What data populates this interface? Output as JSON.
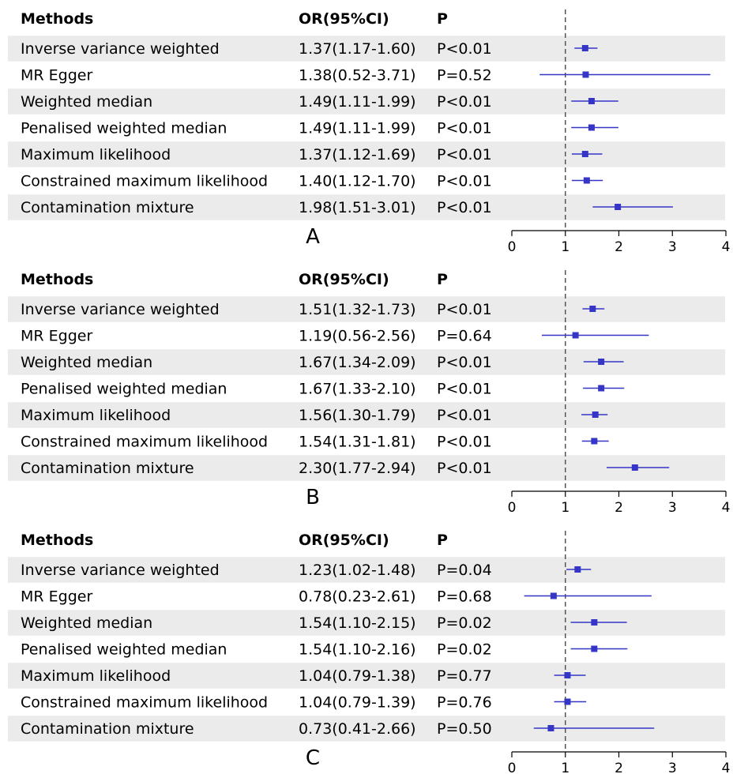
{
  "header": {
    "methods": "Methods",
    "or": "OR(95%CI)",
    "p": "P"
  },
  "chart_data": [
    {
      "type": "forest",
      "panel_label": "A",
      "reference_line": 1,
      "xlim": [
        0,
        4
      ],
      "ticks": [
        "0",
        "1",
        "2",
        "3",
        "4"
      ],
      "rows": [
        {
          "method": "Inverse variance weighted",
          "or_text": "1.37(1.17-1.60)",
          "p_text": "P<0.01",
          "or": 1.37,
          "lo": 1.17,
          "hi": 1.6
        },
        {
          "method": "MR Egger",
          "or_text": "1.38(0.52-3.71)",
          "p_text": "P=0.52",
          "or": 1.38,
          "lo": 0.52,
          "hi": 3.71
        },
        {
          "method": "Weighted median",
          "or_text": "1.49(1.11-1.99)",
          "p_text": "P<0.01",
          "or": 1.49,
          "lo": 1.11,
          "hi": 1.99
        },
        {
          "method": "Penalised weighted median",
          "or_text": "1.49(1.11-1.99)",
          "p_text": "P<0.01",
          "or": 1.49,
          "lo": 1.11,
          "hi": 1.99
        },
        {
          "method": "Maximum likelihood",
          "or_text": "1.37(1.12-1.69)",
          "p_text": "P<0.01",
          "or": 1.37,
          "lo": 1.12,
          "hi": 1.69
        },
        {
          "method": "Constrained maximum likelihood",
          "or_text": "1.40(1.12-1.70)",
          "p_text": "P<0.01",
          "or": 1.4,
          "lo": 1.12,
          "hi": 1.7
        },
        {
          "method": "Contamination mixture",
          "or_text": "1.98(1.51-3.01)",
          "p_text": "P<0.01",
          "or": 1.98,
          "lo": 1.51,
          "hi": 3.01
        }
      ]
    },
    {
      "type": "forest",
      "panel_label": "B",
      "reference_line": 1,
      "xlim": [
        0,
        4
      ],
      "ticks": [
        "0",
        "1",
        "2",
        "3",
        "4"
      ],
      "rows": [
        {
          "method": "Inverse variance weighted",
          "or_text": "1.51(1.32-1.73)",
          "p_text": "P<0.01",
          "or": 1.51,
          "lo": 1.32,
          "hi": 1.73
        },
        {
          "method": "MR Egger",
          "or_text": "1.19(0.56-2.56)",
          "p_text": "P=0.64",
          "or": 1.19,
          "lo": 0.56,
          "hi": 2.56
        },
        {
          "method": "Weighted median",
          "or_text": "1.67(1.34-2.09)",
          "p_text": "P<0.01",
          "or": 1.67,
          "lo": 1.34,
          "hi": 2.09
        },
        {
          "method": "Penalised weighted median",
          "or_text": "1.67(1.33-2.10)",
          "p_text": "P<0.01",
          "or": 1.67,
          "lo": 1.33,
          "hi": 2.1
        },
        {
          "method": "Maximum likelihood",
          "or_text": "1.56(1.30-1.79)",
          "p_text": "P<0.01",
          "or": 1.56,
          "lo": 1.3,
          "hi": 1.79
        },
        {
          "method": "Constrained maximum likelihood",
          "or_text": "1.54(1.31-1.81)",
          "p_text": "P<0.01",
          "or": 1.54,
          "lo": 1.31,
          "hi": 1.81
        },
        {
          "method": "Contamination mixture",
          "or_text": "2.30(1.77-2.94)",
          "p_text": "P<0.01",
          "or": 2.3,
          "lo": 1.77,
          "hi": 2.94
        }
      ]
    },
    {
      "type": "forest",
      "panel_label": "C",
      "reference_line": 1,
      "xlim": [
        0,
        4
      ],
      "ticks": [
        "0",
        "1",
        "2",
        "3",
        "4"
      ],
      "rows": [
        {
          "method": "Inverse variance weighted",
          "or_text": "1.23(1.02-1.48)",
          "p_text": "P=0.04",
          "or": 1.23,
          "lo": 1.02,
          "hi": 1.48
        },
        {
          "method": "MR Egger",
          "or_text": "0.78(0.23-2.61)",
          "p_text": "P=0.68",
          "or": 0.78,
          "lo": 0.23,
          "hi": 2.61
        },
        {
          "method": "Weighted median",
          "or_text": "1.54(1.10-2.15)",
          "p_text": "P=0.02",
          "or": 1.54,
          "lo": 1.1,
          "hi": 2.15
        },
        {
          "method": "Penalised weighted median",
          "or_text": "1.54(1.10-2.16)",
          "p_text": "P=0.02",
          "or": 1.54,
          "lo": 1.1,
          "hi": 2.16
        },
        {
          "method": "Maximum likelihood",
          "or_text": "1.04(0.79-1.38)",
          "p_text": "P=0.77",
          "or": 1.04,
          "lo": 0.79,
          "hi": 1.38
        },
        {
          "method": "Constrained maximum likelihood",
          "or_text": "1.04(0.79-1.39)",
          "p_text": "P=0.76",
          "or": 1.04,
          "lo": 0.79,
          "hi": 1.39
        },
        {
          "method": "Contamination mixture",
          "or_text": "0.73(0.41-2.66)",
          "p_text": "P=0.50",
          "or": 0.73,
          "lo": 0.41,
          "hi": 2.66
        }
      ]
    }
  ],
  "colors": {
    "estimate": "#3535c8",
    "row_band": "#ebebeb",
    "reference_line": "#555555"
  }
}
